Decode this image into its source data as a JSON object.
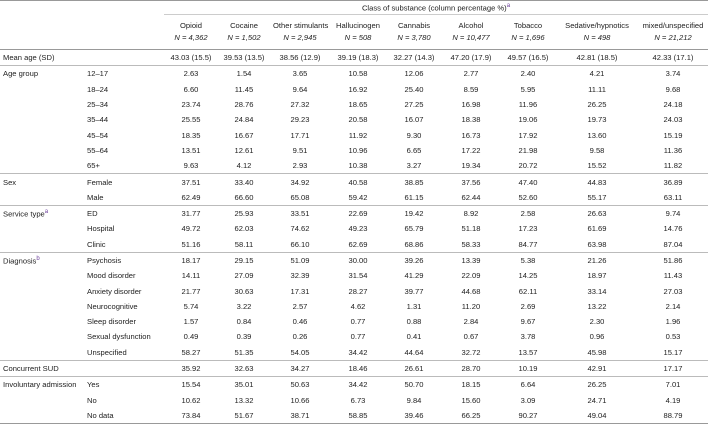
{
  "header": {
    "title": "Class of substance (column percentage %)",
    "title_note": "a",
    "columns": [
      {
        "name": "Opioid",
        "n": "N = 4,362"
      },
      {
        "name": "Cocaine",
        "n": "N = 1,502"
      },
      {
        "name": "Other stimulants",
        "n": "N = 2,945"
      },
      {
        "name": "Hallucinogen",
        "n": "N = 508"
      },
      {
        "name": "Cannabis",
        "n": "N = 3,780"
      },
      {
        "name": "Alcohol",
        "n": "N = 10,477"
      },
      {
        "name": "Tobacco",
        "n": "N = 1,696"
      },
      {
        "name": "Sedative/hypnotics",
        "n": "N = 498"
      },
      {
        "name": "mixed/unspecified",
        "n": "N = 21,212"
      }
    ]
  },
  "sections": [
    {
      "label": "Mean age (SD)",
      "values": [
        "43.03 (15.5)",
        "39.53 (13.5)",
        "38.56 (12.9)",
        "39.19 (18.3)",
        "32.27 (14.3)",
        "47.20 (17.9)",
        "49.57 (16.5)",
        "42.81 (18.5)",
        "42.33 (17.1)"
      ]
    },
    {
      "label": "Age group",
      "rows": [
        {
          "label": "12–17",
          "values": [
            "2.63",
            "1.54",
            "3.65",
            "10.58",
            "12.06",
            "2.77",
            "2.40",
            "4.21",
            "3.74"
          ]
        },
        {
          "label": "18–24",
          "values": [
            "6.60",
            "11.45",
            "9.64",
            "16.92",
            "25.40",
            "8.59",
            "5.95",
            "11.11",
            "9.68"
          ]
        },
        {
          "label": "25–34",
          "values": [
            "23.74",
            "28.76",
            "27.32",
            "18.65",
            "27.25",
            "16.98",
            "11.96",
            "26.25",
            "24.18"
          ]
        },
        {
          "label": "35–44",
          "values": [
            "25.55",
            "24.84",
            "29.23",
            "20.58",
            "16.07",
            "18.38",
            "19.06",
            "19.73",
            "24.03"
          ]
        },
        {
          "label": "45–54",
          "values": [
            "18.35",
            "16.67",
            "17.71",
            "11.92",
            "9.30",
            "16.73",
            "17.92",
            "13.60",
            "15.19"
          ]
        },
        {
          "label": "55–64",
          "values": [
            "13.51",
            "12.61",
            "9.51",
            "10.96",
            "6.65",
            "17.22",
            "21.98",
            "9.58",
            "11.36"
          ]
        },
        {
          "label": "65+",
          "values": [
            "9.63",
            "4.12",
            "2.93",
            "10.38",
            "3.27",
            "19.34",
            "20.72",
            "15.52",
            "11.82"
          ]
        }
      ]
    },
    {
      "label": "Sex",
      "rows": [
        {
          "label": "Female",
          "values": [
            "37.51",
            "33.40",
            "34.92",
            "40.58",
            "38.85",
            "37.56",
            "47.40",
            "44.83",
            "36.89"
          ]
        },
        {
          "label": "Male",
          "values": [
            "62.49",
            "66.60",
            "65.08",
            "59.42",
            "61.15",
            "62.44",
            "52.60",
            "55.17",
            "63.11"
          ]
        }
      ]
    },
    {
      "label": "Service type",
      "note": "a",
      "rows": [
        {
          "label": "ED",
          "values": [
            "31.77",
            "25.93",
            "33.51",
            "22.69",
            "19.42",
            "8.92",
            "2.58",
            "26.63",
            "9.74"
          ]
        },
        {
          "label": "Hospital",
          "values": [
            "49.72",
            "62.03",
            "74.62",
            "49.23",
            "65.79",
            "51.18",
            "17.23",
            "61.69",
            "14.76"
          ]
        },
        {
          "label": "Clinic",
          "values": [
            "51.16",
            "58.11",
            "66.10",
            "62.69",
            "68.86",
            "58.33",
            "84.77",
            "63.98",
            "87.04"
          ]
        }
      ]
    },
    {
      "label": "Diagnosis",
      "note": "b",
      "rows": [
        {
          "label": "Psychosis",
          "values": [
            "18.17",
            "29.15",
            "51.09",
            "30.00",
            "39.26",
            "13.39",
            "5.38",
            "21.26",
            "51.86"
          ]
        },
        {
          "label": "Mood disorder",
          "values": [
            "14.11",
            "27.09",
            "32.39",
            "31.54",
            "41.29",
            "22.09",
            "14.25",
            "18.97",
            "11.43"
          ]
        },
        {
          "label": "Anxiety disorder",
          "values": [
            "21.77",
            "30.63",
            "17.31",
            "28.27",
            "39.77",
            "44.68",
            "62.11",
            "33.14",
            "27.03"
          ]
        },
        {
          "label": "Neurocognitive",
          "values": [
            "5.74",
            "3.22",
            "2.57",
            "4.62",
            "1.31",
            "11.20",
            "2.69",
            "13.22",
            "2.14"
          ]
        },
        {
          "label": "Sleep disorder",
          "values": [
            "1.57",
            "0.84",
            "0.46",
            "0.77",
            "0.88",
            "2.84",
            "9.67",
            "2.30",
            "1.96"
          ]
        },
        {
          "label": "Sexual dysfunction",
          "values": [
            "0.49",
            "0.39",
            "0.26",
            "0.77",
            "0.41",
            "0.67",
            "3.78",
            "0.96",
            "0.53"
          ]
        },
        {
          "label": "Unspecified",
          "values": [
            "58.27",
            "51.35",
            "54.05",
            "34.42",
            "44.64",
            "32.72",
            "13.57",
            "45.98",
            "15.17"
          ]
        }
      ]
    },
    {
      "label": "Concurrent SUD",
      "values": [
        "35.92",
        "32.63",
        "34.27",
        "18.46",
        "26.61",
        "28.70",
        "10.19",
        "42.91",
        "17.17"
      ]
    },
    {
      "label": "Involuntary admission",
      "rows": [
        {
          "label": "Yes",
          "values": [
            "15.54",
            "35.01",
            "50.63",
            "34.42",
            "50.70",
            "18.15",
            "6.64",
            "26.25",
            "7.01"
          ]
        },
        {
          "label": "No",
          "values": [
            "10.62",
            "13.32",
            "10.66",
            "6.73",
            "9.84",
            "15.60",
            "3.09",
            "24.71",
            "4.19"
          ]
        },
        {
          "label": "No data",
          "values": [
            "73.84",
            "51.67",
            "38.71",
            "58.85",
            "39.46",
            "66.25",
            "90.27",
            "49.04",
            "88.79"
          ]
        }
      ]
    }
  ]
}
